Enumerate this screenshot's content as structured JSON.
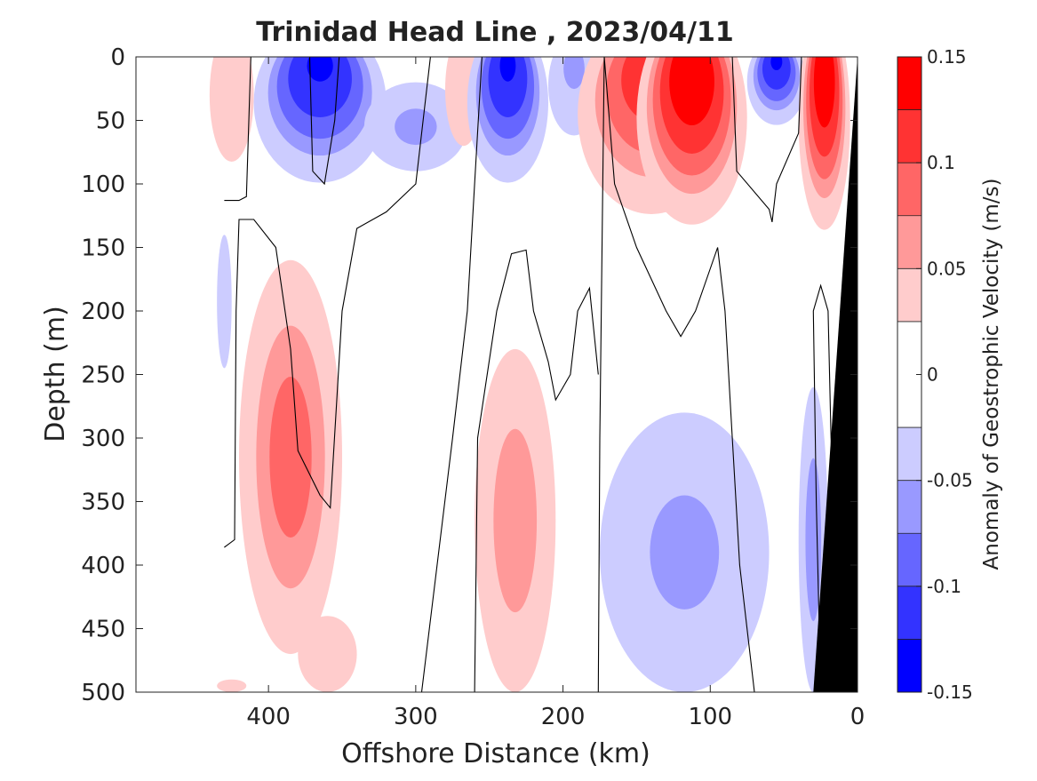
{
  "chart_data": {
    "type": "heatmap",
    "subtype": "filled-contour",
    "title": "Trinidad Head Line , 2023/04/11",
    "xlabel": "Offshore Distance (km)",
    "ylabel": "Depth (m)",
    "colorbar_label": "Anomaly of Geostrophic Velocity (m/s)",
    "xlim": [
      490,
      0
    ],
    "ylim": [
      0,
      500
    ],
    "x_reversed": true,
    "y_reversed": true,
    "x_ticks": [
      400,
      300,
      200,
      100,
      0
    ],
    "y_ticks": [
      0,
      50,
      100,
      150,
      200,
      250,
      300,
      350,
      400,
      450,
      500
    ],
    "colorbar_ticks": [
      0.15,
      0.1,
      0.05,
      0,
      -0.05,
      -0.1,
      -0.15
    ],
    "colorbar_tick_labels": [
      "0.15",
      "0.1",
      "0.05",
      "0",
      "-0.05",
      "-0.1",
      "-0.15"
    ],
    "colorbar_range": [
      -0.15,
      0.15
    ],
    "levels": [
      -0.15,
      -0.125,
      -0.1,
      -0.075,
      -0.05,
      -0.025,
      0.025,
      0.05,
      0.075,
      0.1,
      0.125,
      0.15
    ],
    "level_colors": [
      {
        "range": [
          0.125,
          0.15
        ],
        "color": "#ff0000"
      },
      {
        "range": [
          0.1,
          0.125
        ],
        "color": "#ff3333"
      },
      {
        "range": [
          0.075,
          0.1
        ],
        "color": "#ff6666"
      },
      {
        "range": [
          0.05,
          0.075
        ],
        "color": "#ff9999"
      },
      {
        "range": [
          0.025,
          0.05
        ],
        "color": "#ffcccc"
      },
      {
        "range": [
          -0.025,
          0.025
        ],
        "color": "#ffffff"
      },
      {
        "range": [
          -0.05,
          -0.025
        ],
        "color": "#ccccff"
      },
      {
        "range": [
          -0.075,
          -0.05
        ],
        "color": "#9999ff"
      },
      {
        "range": [
          -0.1,
          -0.075
        ],
        "color": "#6666ff"
      },
      {
        "range": [
          -0.125,
          -0.1
        ],
        "color": "#3333ff"
      },
      {
        "range": [
          -0.15,
          -0.125
        ],
        "color": "#0000ff"
      }
    ],
    "bathymetry_color": "#000000",
    "bathymetry": [
      [
        0,
        0
      ],
      [
        0,
        500
      ],
      [
        30,
        500
      ]
    ],
    "features": [
      {
        "kind": "positive",
        "x": [
          410,
          440
        ],
        "z": [
          0,
          100
        ],
        "peak": 0.04
      },
      {
        "kind": "negative",
        "x": [
          320,
          410
        ],
        "z": [
          0,
          120
        ],
        "peak": -0.13
      },
      {
        "kind": "negative",
        "x": [
          265,
          335
        ],
        "z": [
          20,
          90
        ],
        "peak": -0.06
      },
      {
        "kind": "positive",
        "x": [
          255,
          280
        ],
        "z": [
          0,
          85
        ],
        "peak": 0.04
      },
      {
        "kind": "negative",
        "x": [
          210,
          265
        ],
        "z": [
          0,
          120
        ],
        "peak": -0.13
      },
      {
        "kind": "negative",
        "x": [
          175,
          210
        ],
        "z": [
          0,
          75
        ],
        "peak": -0.06
      },
      {
        "kind": "positive",
        "x": [
          90,
          190
        ],
        "z": [
          0,
          150
        ],
        "peak": 0.12
      },
      {
        "kind": "positive",
        "x": [
          75,
          150
        ],
        "z": [
          0,
          160
        ],
        "peak": 0.15
      },
      {
        "kind": "negative",
        "x": [
          35,
          75
        ],
        "z": [
          0,
          65
        ],
        "peak": -0.13
      },
      {
        "kind": "positive",
        "x": [
          5,
          40
        ],
        "z": [
          0,
          165
        ],
        "peak": 0.15
      },
      {
        "kind": "negative",
        "x": [
          425,
          435
        ],
        "z": [
          140,
          245
        ],
        "peak": -0.03
      },
      {
        "kind": "positive",
        "x": [
          350,
          420
        ],
        "z": [
          160,
          470
        ],
        "peak": 0.09
      },
      {
        "kind": "positive",
        "x": [
          205,
          260
        ],
        "z": [
          230,
          500
        ],
        "peak": 0.07
      },
      {
        "kind": "negative",
        "x": [
          60,
          175
        ],
        "z": [
          280,
          500
        ],
        "peak": -0.06
      },
      {
        "kind": "negative",
        "x": [
          20,
          40
        ],
        "z": [
          260,
          500
        ],
        "peak": -0.07
      },
      {
        "kind": "positive",
        "x": [
          340,
          380
        ],
        "z": [
          440,
          500
        ],
        "peak": 0.04
      },
      {
        "kind": "positive",
        "x": [
          415,
          435
        ],
        "z": [
          490,
          500
        ],
        "peak": 0.03
      }
    ],
    "zero_contours": [
      [
        [
          430,
          113
        ],
        [
          420,
          113
        ],
        [
          415,
          110
        ],
        [
          412,
          0
        ]
      ],
      [
        [
          352,
          0
        ],
        [
          355,
          50
        ],
        [
          362,
          100
        ],
        [
          370,
          90
        ],
        [
          372,
          0
        ]
      ],
      [
        [
          290,
          0
        ],
        [
          300,
          100
        ],
        [
          320,
          122
        ],
        [
          340,
          135
        ],
        [
          350,
          200
        ],
        [
          358,
          355
        ],
        [
          365,
          345
        ],
        [
          380,
          310
        ],
        [
          385,
          230
        ],
        [
          395,
          150
        ],
        [
          410,
          128
        ],
        [
          420,
          128
        ],
        [
          422,
          200
        ],
        [
          423,
          380
        ],
        [
          430,
          386
        ]
      ],
      [
        [
          255,
          0
        ],
        [
          260,
          100
        ],
        [
          265,
          200
        ],
        [
          275,
          300
        ],
        [
          296,
          500
        ]
      ],
      [
        [
          172,
          0
        ],
        [
          175,
          300
        ],
        [
          176,
          500
        ]
      ],
      [
        [
          260,
          500
        ],
        [
          258,
          300
        ],
        [
          245,
          200
        ],
        [
          235,
          155
        ],
        [
          225,
          152
        ],
        [
          220,
          200
        ],
        [
          210,
          240
        ],
        [
          205,
          270
        ],
        [
          195,
          250
        ],
        [
          190,
          200
        ],
        [
          182,
          182
        ],
        [
          176,
          250
        ]
      ],
      [
        [
          172,
          0
        ],
        [
          165,
          100
        ],
        [
          150,
          150
        ],
        [
          130,
          200
        ],
        [
          120,
          220
        ],
        [
          110,
          200
        ],
        [
          95,
          150
        ],
        [
          90,
          200
        ],
        [
          85,
          300
        ],
        [
          80,
          400
        ],
        [
          70,
          500
        ]
      ],
      [
        [
          85,
          0
        ],
        [
          82,
          90
        ],
        [
          60,
          120
        ],
        [
          58,
          130
        ],
        [
          55,
          100
        ],
        [
          40,
          60
        ],
        [
          38,
          0
        ]
      ],
      [
        [
          25,
          500
        ],
        [
          28,
          350
        ],
        [
          30,
          200
        ],
        [
          25,
          180
        ],
        [
          20,
          200
        ],
        [
          18,
          300
        ],
        [
          15,
          400
        ],
        [
          12,
          500
        ]
      ]
    ]
  }
}
